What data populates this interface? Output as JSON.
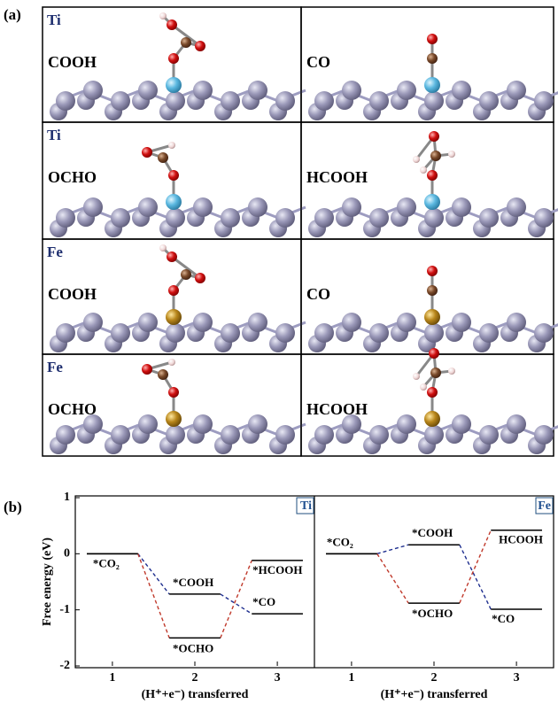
{
  "panel_a": {
    "label": "(a)",
    "cells": [
      {
        "metal": "Ti",
        "species": "COOH"
      },
      {
        "species": "CO"
      },
      {
        "metal": "Ti",
        "species": "OCHO"
      },
      {
        "species": "HCOOH"
      },
      {
        "metal": "Fe",
        "species": "COOH"
      },
      {
        "species": "CO"
      },
      {
        "metal": "Fe",
        "species": "OCHO"
      },
      {
        "species": "HCOOH"
      }
    ]
  },
  "panel_b_label": "(b)",
  "chart_data": [
    {
      "type": "step",
      "label": "Ti",
      "ylabel": "Free energy (eV)",
      "xlabel": "(H⁺+e⁻) transferred",
      "ylim": [
        -2,
        1
      ],
      "yticks": [
        -2,
        -1,
        0,
        1
      ],
      "xlim": [
        0.55,
        3.45
      ],
      "xticks": [
        1,
        2,
        3
      ],
      "series": [
        {
          "color": "#1f2f8f",
          "x": [
            1,
            2,
            3
          ],
          "values": [
            0,
            -0.72,
            -1.07
          ],
          "point_labels": [
            "*CO₂",
            "*COOH",
            "*CO"
          ]
        },
        {
          "color": "#c0392b",
          "x": [
            1,
            2,
            3
          ],
          "values": [
            0,
            -1.5,
            -0.12
          ],
          "point_labels": [
            null,
            "*OCHO",
            "*HCOOH"
          ]
        }
      ]
    },
    {
      "type": "step",
      "label": "Fe",
      "xlabel": "(H⁺+e⁻) transferred",
      "ylim": [
        -2,
        1
      ],
      "xlim": [
        0.55,
        3.45
      ],
      "xticks": [
        1,
        2,
        3
      ],
      "series": [
        {
          "color": "#1f2f8f",
          "x": [
            1,
            2,
            3
          ],
          "values": [
            0,
            0.16,
            -0.99
          ],
          "point_labels": [
            "*CO₂",
            "*COOH",
            "*CO"
          ]
        },
        {
          "color": "#c0392b",
          "x": [
            1,
            2,
            3
          ],
          "values": [
            0,
            -0.88,
            0.42
          ],
          "point_labels": [
            null,
            "*OCHO",
            "HCOOH"
          ]
        }
      ]
    }
  ]
}
